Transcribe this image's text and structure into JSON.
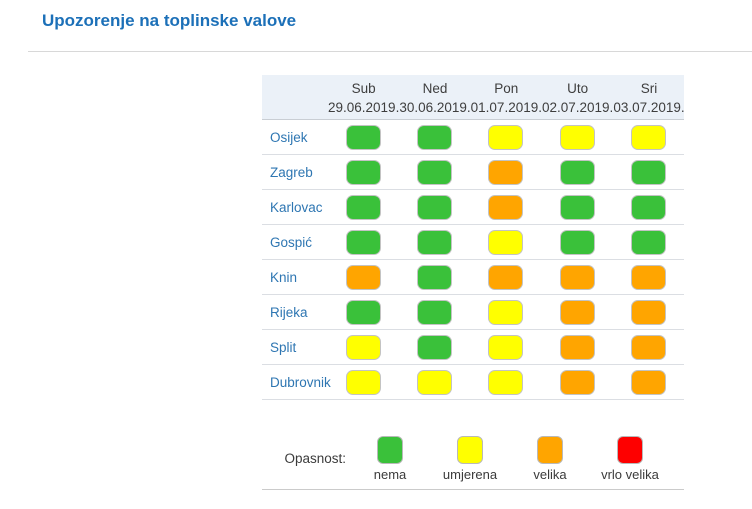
{
  "page": {
    "title": "Upozorenje na toplinske valove"
  },
  "colors": {
    "title": "#1c70b8",
    "city_text": "#2e76b2",
    "header_bg": "#ebf1f8",
    "levels": {
      "nema": "#3ac13a",
      "umjerena": "#ffff00",
      "velika": "#ffa500",
      "vrlo velika": "#fe0000"
    }
  },
  "table": {
    "days": [
      {
        "name": "Sub",
        "date": "29.06.2019."
      },
      {
        "name": "Ned",
        "date": "30.06.2019."
      },
      {
        "name": "Pon",
        "date": "01.07.2019."
      },
      {
        "name": "Uto",
        "date": "02.07.2019."
      },
      {
        "name": "Sri",
        "date": "03.07.2019."
      }
    ],
    "rows": [
      {
        "city": "Osijek",
        "levels": [
          "nema",
          "nema",
          "umjerena",
          "umjerena",
          "umjerena"
        ]
      },
      {
        "city": "Zagreb",
        "levels": [
          "nema",
          "nema",
          "velika",
          "nema",
          "nema"
        ]
      },
      {
        "city": "Karlovac",
        "levels": [
          "nema",
          "nema",
          "velika",
          "nema",
          "nema"
        ]
      },
      {
        "city": "Gospić",
        "levels": [
          "nema",
          "nema",
          "umjerena",
          "nema",
          "nema"
        ]
      },
      {
        "city": "Knin",
        "levels": [
          "velika",
          "nema",
          "velika",
          "velika",
          "velika"
        ]
      },
      {
        "city": "Rijeka",
        "levels": [
          "nema",
          "nema",
          "umjerena",
          "velika",
          "velika"
        ]
      },
      {
        "city": "Split",
        "levels": [
          "umjerena",
          "nema",
          "umjerena",
          "velika",
          "velika"
        ]
      },
      {
        "city": "Dubrovnik",
        "levels": [
          "umjerena",
          "umjerena",
          "umjerena",
          "velika",
          "velika"
        ]
      }
    ]
  },
  "legend": {
    "label": "Opasnost:",
    "items": [
      {
        "level": "nema",
        "label": "nema"
      },
      {
        "level": "umjerena",
        "label": "umjerena"
      },
      {
        "level": "velika",
        "label": "velika"
      },
      {
        "level": "vrlo velika",
        "label": "vrlo velika"
      }
    ]
  },
  "chart_data": {
    "type": "heatmap",
    "title": "Upozorenje na toplinske valove",
    "columns": [
      "Sub 29.06.2019.",
      "Ned 30.06.2019.",
      "Pon 01.07.2019.",
      "Uto 02.07.2019.",
      "Sri 03.07.2019."
    ],
    "rows": [
      "Osijek",
      "Zagreb",
      "Karlovac",
      "Gospić",
      "Knin",
      "Rijeka",
      "Split",
      "Dubrovnik"
    ],
    "values": [
      [
        "nema",
        "nema",
        "umjerena",
        "umjerena",
        "umjerena"
      ],
      [
        "nema",
        "nema",
        "velika",
        "nema",
        "nema"
      ],
      [
        "nema",
        "nema",
        "velika",
        "nema",
        "nema"
      ],
      [
        "nema",
        "nema",
        "umjerena",
        "nema",
        "nema"
      ],
      [
        "velika",
        "nema",
        "velika",
        "velika",
        "velika"
      ],
      [
        "nema",
        "nema",
        "umjerena",
        "velika",
        "velika"
      ],
      [
        "umjerena",
        "nema",
        "umjerena",
        "velika",
        "velika"
      ],
      [
        "umjerena",
        "umjerena",
        "umjerena",
        "velika",
        "velika"
      ]
    ],
    "legend_title": "Opasnost:",
    "legend_entries": [
      "nema",
      "umjerena",
      "velika",
      "vrlo velika"
    ],
    "legend_colors": [
      "#3ac13a",
      "#ffff00",
      "#ffa500",
      "#fe0000"
    ],
    "legend_position": "bottom"
  }
}
